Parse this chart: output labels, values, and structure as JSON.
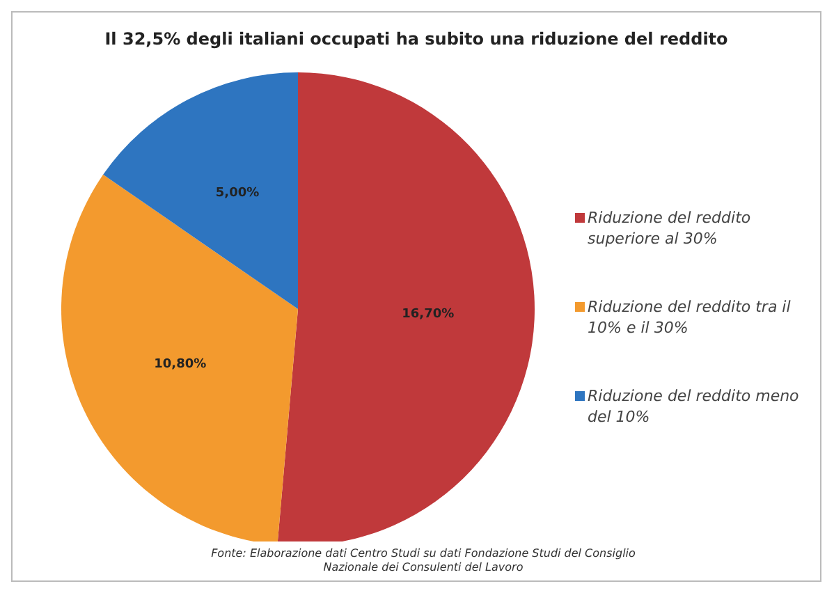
{
  "chart_data": {
    "type": "pie",
    "title": "Il 32,5% degli italiani occupati ha subito una riduzione del reddito",
    "categories": [
      "Riduzione del reddito superiore al 30%",
      "Riduzione del reddito tra il 10% e il 30%",
      "Riduzione del reddito meno del 10%"
    ],
    "values": [
      16.7,
      10.8,
      5
    ],
    "colors": [
      "#c0393b",
      "#f39a2e",
      "#2e75c0"
    ],
    "value_labels": [
      "16,70%",
      "10,80%",
      "5,00%"
    ],
    "legend": "right",
    "annotations": [
      "Fonte: Elaborazione dati Centro Studi su dati Fondazione Studi del Consiglio Nazionale dei Consulenti del Lavoro"
    ]
  }
}
